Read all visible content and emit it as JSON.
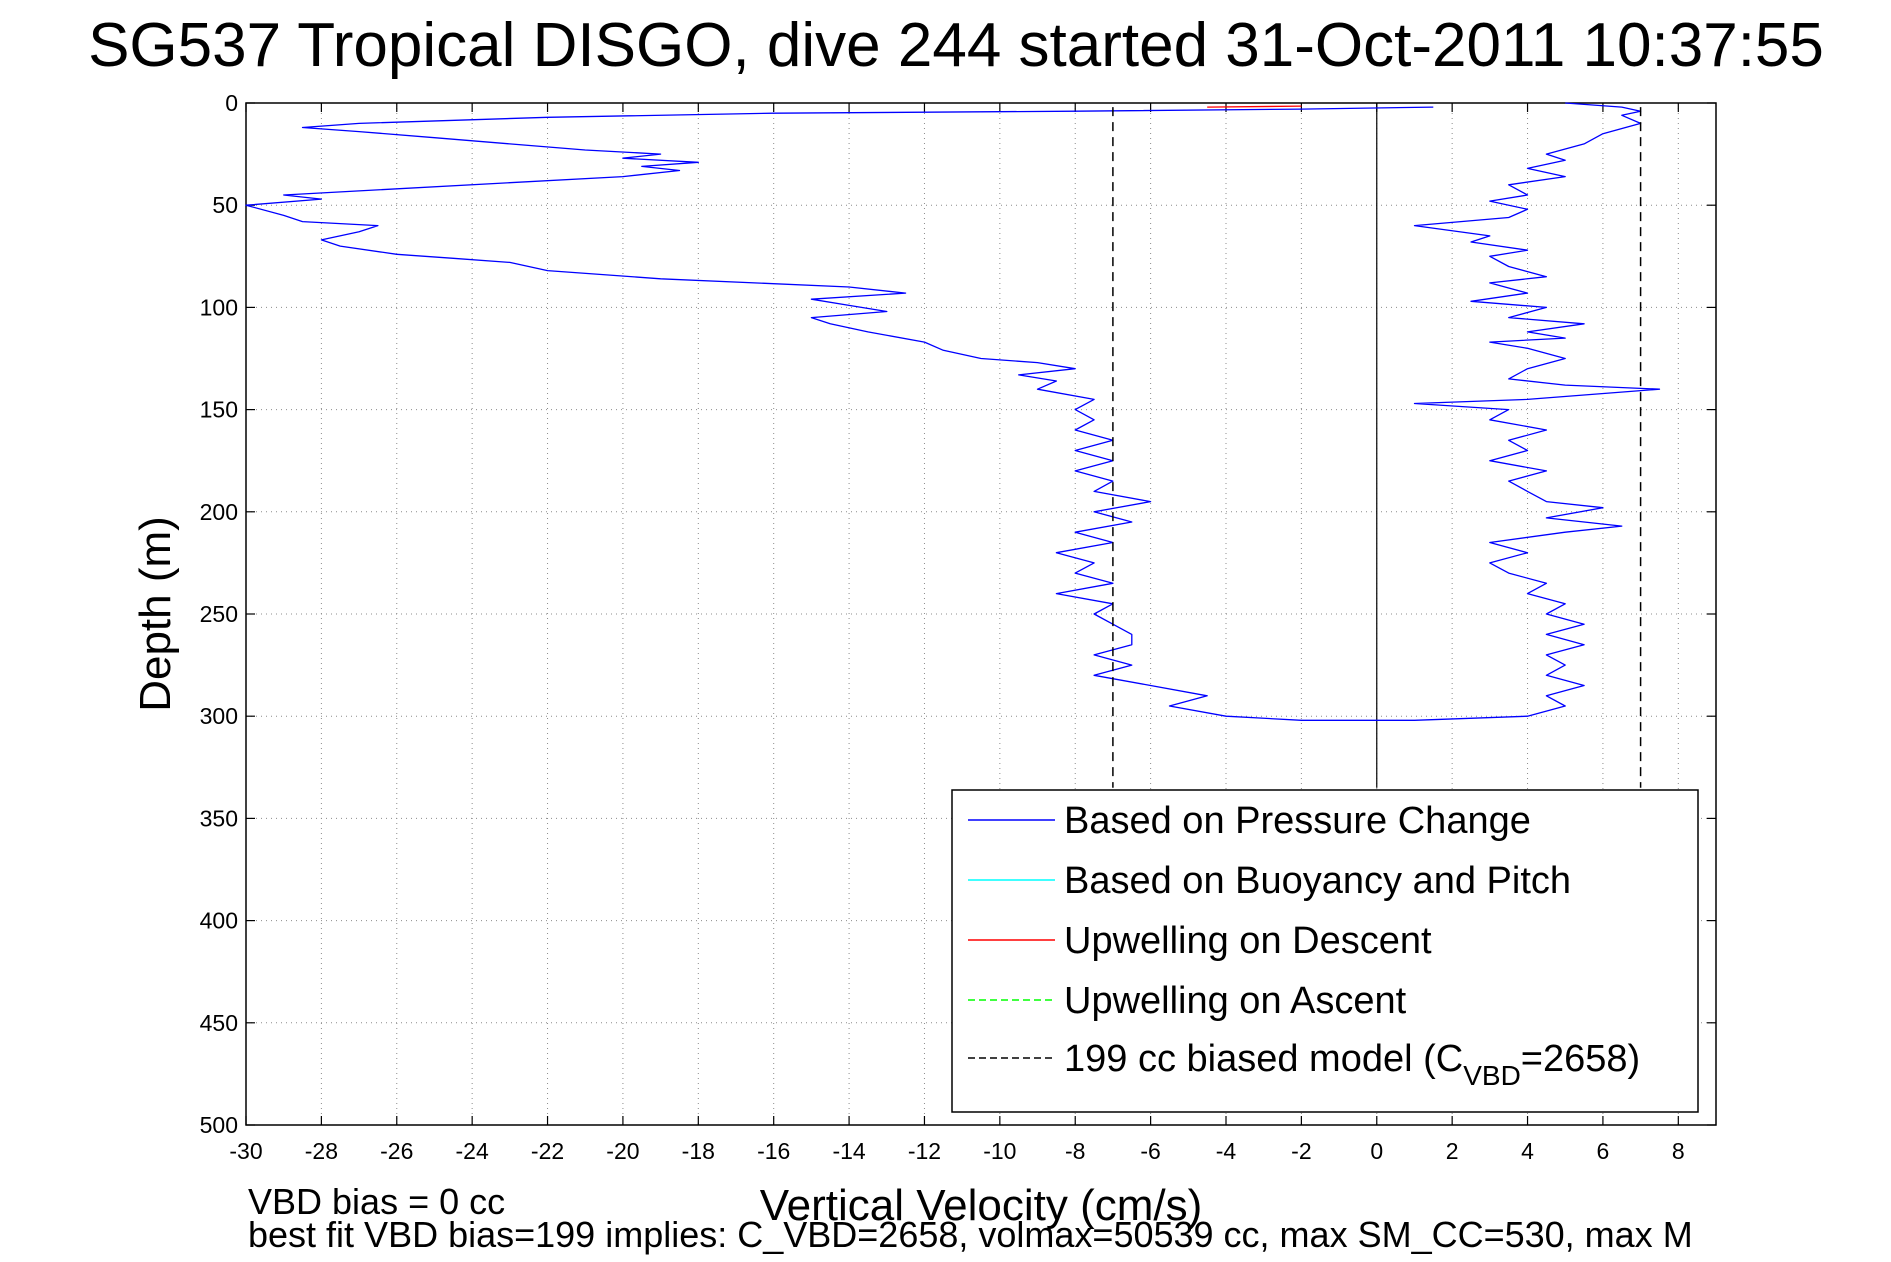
{
  "chart_data": {
    "type": "line",
    "title": "SG537 Tropical DISGO, dive 244 started 31-Oct-2011 10:37:55",
    "xlabel": "Vertical Velocity (cm/s)",
    "ylabel": "Depth (m)",
    "xlim": [
      -30,
      9
    ],
    "ylim": [
      0,
      500
    ],
    "y_reversed": true,
    "grid": true,
    "legend_placement": "lower-right",
    "xticks": [
      "-30",
      "-28",
      "-26",
      "-24",
      "-22",
      "-20",
      "-18",
      "-16",
      "-14",
      "-12",
      "-10",
      "-8",
      "-6",
      "-4",
      "-2",
      "0",
      "2",
      "4",
      "6",
      "8"
    ],
    "yticks": [
      "0",
      "50",
      "100",
      "150",
      "200",
      "250",
      "300",
      "350",
      "400",
      "450",
      "500"
    ],
    "legend": [
      {
        "label": "Based on Pressure Change",
        "color": "#0000ff",
        "style": "solid"
      },
      {
        "label": "Based on Buoyancy and Pitch",
        "color": "#00ffff",
        "style": "solid"
      },
      {
        "label": "Upwelling on Descent",
        "color": "#ff0000",
        "style": "solid"
      },
      {
        "label": "Upwelling on Ascent",
        "color": "#00ff00",
        "style": "dashed"
      },
      {
        "label_main": "199 cc biased model (C",
        "label_sub": "VBD",
        "label_tail": "=2658)",
        "color": "#000000",
        "style": "dashed"
      }
    ],
    "series": [
      {
        "name": "Based on Pressure Change",
        "color": "#0000ff",
        "points": [
          [
            1.5,
            2
          ],
          [
            -2,
            3
          ],
          [
            -8,
            4
          ],
          [
            -16,
            5
          ],
          [
            -22,
            7
          ],
          [
            -27,
            10
          ],
          [
            -28.5,
            12
          ],
          [
            -27,
            14
          ],
          [
            -25,
            17
          ],
          [
            -23,
            20
          ],
          [
            -21,
            23
          ],
          [
            -19,
            25
          ],
          [
            -20,
            27
          ],
          [
            -18,
            29
          ],
          [
            -19.5,
            31
          ],
          [
            -18.5,
            33
          ],
          [
            -20,
            36
          ],
          [
            -23,
            39
          ],
          [
            -27,
            43
          ],
          [
            -29,
            45
          ],
          [
            -28,
            47
          ],
          [
            -30,
            50
          ],
          [
            -29,
            55
          ],
          [
            -28.5,
            58
          ],
          [
            -26.5,
            60
          ],
          [
            -27,
            63
          ],
          [
            -28,
            67
          ],
          [
            -27.5,
            70
          ],
          [
            -26,
            74
          ],
          [
            -24.5,
            76
          ],
          [
            -23,
            78
          ],
          [
            -22,
            82
          ],
          [
            -19,
            86
          ],
          [
            -14,
            90
          ],
          [
            -12.5,
            93
          ],
          [
            -15,
            96
          ],
          [
            -14,
            99
          ],
          [
            -13,
            102
          ],
          [
            -15,
            105
          ],
          [
            -14.5,
            108
          ],
          [
            -13.5,
            112
          ],
          [
            -12,
            117
          ],
          [
            -11.5,
            121
          ],
          [
            -10.5,
            125
          ],
          [
            -9,
            127
          ],
          [
            -8,
            130
          ],
          [
            -9.5,
            133
          ],
          [
            -8.5,
            136
          ],
          [
            -9,
            140
          ],
          [
            -7.5,
            145
          ],
          [
            -8,
            150
          ],
          [
            -7.5,
            155
          ],
          [
            -8,
            160
          ],
          [
            -7,
            165
          ],
          [
            -8,
            170
          ],
          [
            -7,
            175
          ],
          [
            -8,
            180
          ],
          [
            -7,
            185
          ],
          [
            -7.5,
            190
          ],
          [
            -6,
            195
          ],
          [
            -7.5,
            200
          ],
          [
            -6.5,
            205
          ],
          [
            -8,
            210
          ],
          [
            -7,
            215
          ],
          [
            -8.5,
            220
          ],
          [
            -7.5,
            225
          ],
          [
            -8,
            230
          ],
          [
            -7,
            235
          ],
          [
            -8.5,
            240
          ],
          [
            -7,
            245
          ],
          [
            -7.5,
            250
          ],
          [
            -7,
            255
          ],
          [
            -6.5,
            260
          ],
          [
            -6.5,
            265
          ],
          [
            -7.5,
            270
          ],
          [
            -6.5,
            275
          ],
          [
            -7.5,
            280
          ],
          [
            -6,
            285
          ],
          [
            -4.5,
            290
          ],
          [
            -5.5,
            295
          ],
          [
            -4,
            300
          ],
          [
            -2,
            302
          ],
          [
            1,
            302
          ],
          [
            4,
            300
          ],
          [
            5,
            295
          ],
          [
            4.5,
            290
          ],
          [
            5.5,
            285
          ],
          [
            4.5,
            280
          ],
          [
            5,
            275
          ],
          [
            4.5,
            270
          ],
          [
            5.5,
            265
          ],
          [
            4.5,
            260
          ],
          [
            5.5,
            255
          ],
          [
            4.5,
            250
          ],
          [
            5,
            245
          ],
          [
            4,
            240
          ],
          [
            4.5,
            235
          ],
          [
            3.5,
            230
          ],
          [
            3,
            225
          ],
          [
            4,
            220
          ],
          [
            3,
            215
          ],
          [
            5,
            210
          ],
          [
            6.5,
            207
          ],
          [
            4.5,
            203
          ],
          [
            6,
            198
          ],
          [
            4.5,
            195
          ],
          [
            4,
            190
          ],
          [
            3.5,
            185
          ],
          [
            4.5,
            180
          ],
          [
            3,
            175
          ],
          [
            4,
            170
          ],
          [
            3.5,
            165
          ],
          [
            4.5,
            160
          ],
          [
            3,
            155
          ],
          [
            3.5,
            150
          ],
          [
            1,
            147
          ],
          [
            4,
            145
          ],
          [
            7.5,
            140
          ],
          [
            5,
            138
          ],
          [
            3.5,
            135
          ],
          [
            4,
            130
          ],
          [
            5,
            125
          ],
          [
            4,
            120
          ],
          [
            3,
            117
          ],
          [
            5,
            115
          ],
          [
            4,
            112
          ],
          [
            5.5,
            108
          ],
          [
            3.5,
            105
          ],
          [
            4.5,
            100
          ],
          [
            2.5,
            97
          ],
          [
            4,
            93
          ],
          [
            3,
            88
          ],
          [
            4.5,
            85
          ],
          [
            3.5,
            80
          ],
          [
            3,
            75
          ],
          [
            4,
            72
          ],
          [
            2.5,
            68
          ],
          [
            3,
            65
          ],
          [
            1,
            60
          ],
          [
            3.5,
            56
          ],
          [
            4,
            52
          ],
          [
            3,
            48
          ],
          [
            4,
            45
          ],
          [
            3.5,
            40
          ],
          [
            5,
            36
          ],
          [
            4,
            32
          ],
          [
            5,
            28
          ],
          [
            4.5,
            25
          ],
          [
            5.5,
            20
          ],
          [
            6,
            15
          ],
          [
            7,
            10
          ],
          [
            6.5,
            6
          ],
          [
            7,
            4
          ],
          [
            6.5,
            2
          ],
          [
            5,
            0
          ]
        ]
      },
      {
        "name": "Upwelling on Descent",
        "color": "#ff0000",
        "points": [
          [
            -4.5,
            2
          ],
          [
            -2,
            1.5
          ]
        ]
      },
      {
        "name": "199 cc biased model (CVBD=2658)",
        "color": "#000000",
        "dashed": true,
        "points": [
          [
            -7,
            2
          ],
          [
            -7,
            335
          ]
        ]
      },
      {
        "name": "199 cc biased model (CVBD=2658)",
        "color": "#000000",
        "dashed": true,
        "points": [
          [
            7,
            2
          ],
          [
            7,
            335
          ]
        ]
      }
    ],
    "reference_lines": [
      {
        "x": 0,
        "y_from": 0,
        "y_to": 335,
        "color": "#000000"
      }
    ]
  },
  "footnotes": {
    "line1": "VBD bias = 0 cc",
    "line2": "best fit VBD bias=199 implies: C_VBD=2658, volmax=50539 cc, max SM_CC=530, max M"
  }
}
